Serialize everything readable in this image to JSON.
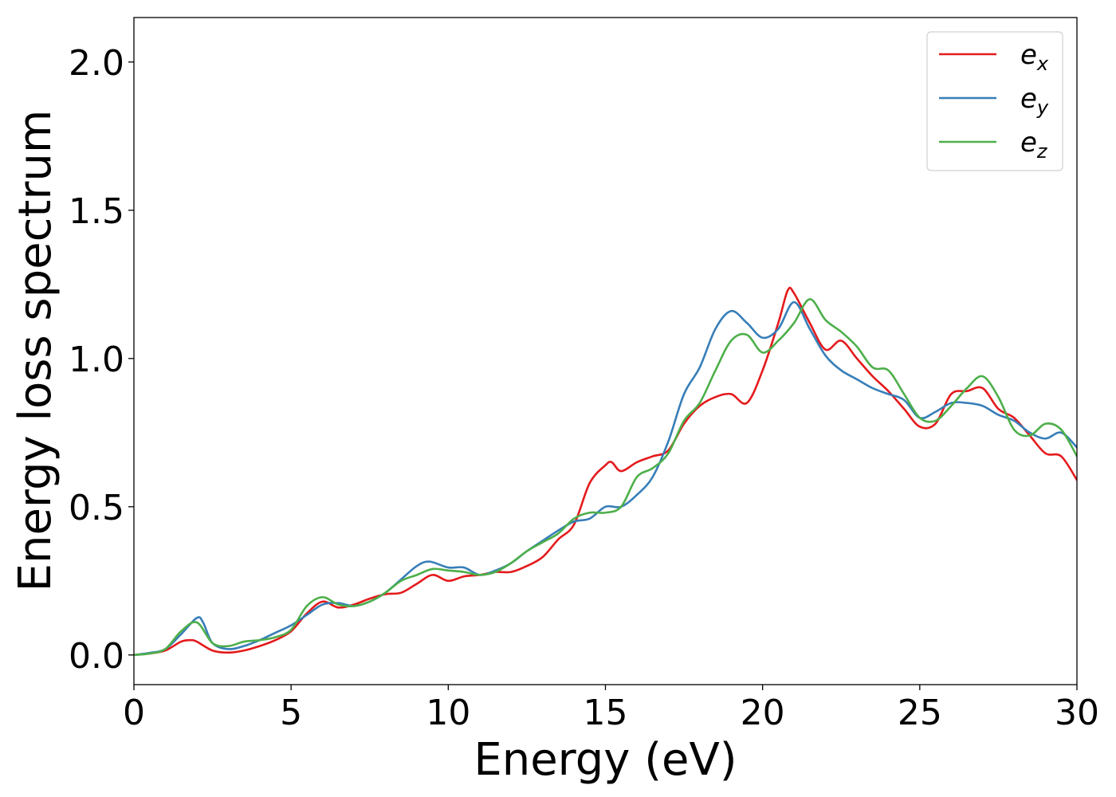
{
  "chart_data": {
    "type": "line",
    "title": "",
    "xlabel": "Energy (eV)",
    "ylabel": "Energy loss spectrum",
    "xlim": [
      0,
      30
    ],
    "ylim": [
      -0.1,
      2.15
    ],
    "x_ticks": [
      0,
      5,
      10,
      15,
      20,
      25,
      30
    ],
    "x_tick_labels": [
      "0",
      "5",
      "10",
      "15",
      "20",
      "25",
      "30"
    ],
    "y_ticks": [
      0.0,
      0.5,
      1.0,
      1.5,
      2.0
    ],
    "y_tick_labels": [
      "0.0",
      "0.5",
      "1.0",
      "1.5",
      "2.0"
    ],
    "grid": false,
    "legend_position": "top-right",
    "series": [
      {
        "name": "e_x",
        "legend_base": "e",
        "legend_sub": "x",
        "color": "#e41a1c",
        "points": [
          [
            0,
            0.0
          ],
          [
            0.5,
            0.005
          ],
          [
            1.0,
            0.015
          ],
          [
            1.5,
            0.045
          ],
          [
            1.8,
            0.05
          ],
          [
            2.0,
            0.045
          ],
          [
            2.5,
            0.015
          ],
          [
            3.0,
            0.008
          ],
          [
            3.5,
            0.015
          ],
          [
            4.0,
            0.03
          ],
          [
            4.5,
            0.05
          ],
          [
            5.0,
            0.08
          ],
          [
            5.5,
            0.14
          ],
          [
            6.0,
            0.18
          ],
          [
            6.5,
            0.16
          ],
          [
            7.0,
            0.17
          ],
          [
            7.5,
            0.19
          ],
          [
            8.0,
            0.205
          ],
          [
            8.5,
            0.21
          ],
          [
            9.0,
            0.24
          ],
          [
            9.5,
            0.27
          ],
          [
            10.0,
            0.25
          ],
          [
            10.5,
            0.265
          ],
          [
            11.0,
            0.27
          ],
          [
            11.5,
            0.28
          ],
          [
            12.0,
            0.28
          ],
          [
            12.5,
            0.3
          ],
          [
            13.0,
            0.33
          ],
          [
            13.5,
            0.39
          ],
          [
            14.0,
            0.44
          ],
          [
            14.5,
            0.58
          ],
          [
            15.0,
            0.64
          ],
          [
            15.2,
            0.65
          ],
          [
            15.5,
            0.62
          ],
          [
            16.0,
            0.65
          ],
          [
            16.5,
            0.67
          ],
          [
            17.0,
            0.69
          ],
          [
            17.5,
            0.78
          ],
          [
            18.0,
            0.84
          ],
          [
            18.5,
            0.87
          ],
          [
            19.0,
            0.88
          ],
          [
            19.5,
            0.85
          ],
          [
            20.0,
            0.96
          ],
          [
            20.5,
            1.12
          ],
          [
            20.8,
            1.23
          ],
          [
            21.0,
            1.22
          ],
          [
            21.5,
            1.12
          ],
          [
            22.0,
            1.03
          ],
          [
            22.5,
            1.06
          ],
          [
            23.0,
            1.0
          ],
          [
            23.5,
            0.94
          ],
          [
            24.0,
            0.89
          ],
          [
            24.5,
            0.83
          ],
          [
            25.0,
            0.77
          ],
          [
            25.5,
            0.78
          ],
          [
            26.0,
            0.88
          ],
          [
            26.5,
            0.89
          ],
          [
            27.0,
            0.9
          ],
          [
            27.5,
            0.83
          ],
          [
            28.0,
            0.8
          ],
          [
            28.5,
            0.74
          ],
          [
            29.0,
            0.68
          ],
          [
            29.5,
            0.67
          ],
          [
            30.0,
            0.59
          ]
        ]
      },
      {
        "name": "e_y",
        "legend_base": "e",
        "legend_sub": "y",
        "color": "#377eb8",
        "points": [
          [
            0,
            0.0
          ],
          [
            0.5,
            0.007
          ],
          [
            1.0,
            0.02
          ],
          [
            1.5,
            0.07
          ],
          [
            2.0,
            0.125
          ],
          [
            2.2,
            0.11
          ],
          [
            2.5,
            0.04
          ],
          [
            3.0,
            0.02
          ],
          [
            3.5,
            0.03
          ],
          [
            4.0,
            0.05
          ],
          [
            4.5,
            0.075
          ],
          [
            5.0,
            0.1
          ],
          [
            5.5,
            0.135
          ],
          [
            6.0,
            0.17
          ],
          [
            6.5,
            0.175
          ],
          [
            7.0,
            0.165
          ],
          [
            7.5,
            0.18
          ],
          [
            8.0,
            0.21
          ],
          [
            8.5,
            0.255
          ],
          [
            9.0,
            0.3
          ],
          [
            9.4,
            0.315
          ],
          [
            10.0,
            0.295
          ],
          [
            10.5,
            0.295
          ],
          [
            11.0,
            0.27
          ],
          [
            11.5,
            0.285
          ],
          [
            12.0,
            0.31
          ],
          [
            12.5,
            0.35
          ],
          [
            13.0,
            0.385
          ],
          [
            13.5,
            0.42
          ],
          [
            14.0,
            0.45
          ],
          [
            14.5,
            0.46
          ],
          [
            15.0,
            0.5
          ],
          [
            15.5,
            0.5
          ],
          [
            16.0,
            0.54
          ],
          [
            16.5,
            0.6
          ],
          [
            17.0,
            0.72
          ],
          [
            17.5,
            0.88
          ],
          [
            18.0,
            0.97
          ],
          [
            18.5,
            1.1
          ],
          [
            19.0,
            1.16
          ],
          [
            19.5,
            1.12
          ],
          [
            20.0,
            1.07
          ],
          [
            20.5,
            1.1
          ],
          [
            21.0,
            1.19
          ],
          [
            21.5,
            1.1
          ],
          [
            22.0,
            1.01
          ],
          [
            22.5,
            0.96
          ],
          [
            23.0,
            0.93
          ],
          [
            23.5,
            0.9
          ],
          [
            24.0,
            0.88
          ],
          [
            24.5,
            0.86
          ],
          [
            25.0,
            0.8
          ],
          [
            25.5,
            0.82
          ],
          [
            26.0,
            0.85
          ],
          [
            26.5,
            0.85
          ],
          [
            27.0,
            0.84
          ],
          [
            27.5,
            0.81
          ],
          [
            28.0,
            0.79
          ],
          [
            28.5,
            0.75
          ],
          [
            29.0,
            0.73
          ],
          [
            29.5,
            0.75
          ],
          [
            30.0,
            0.7
          ]
        ]
      },
      {
        "name": "e_z",
        "legend_base": "e",
        "legend_sub": "z",
        "color": "#4daf4a",
        "points": [
          [
            0,
            0.0
          ],
          [
            0.5,
            0.005
          ],
          [
            1.0,
            0.02
          ],
          [
            1.5,
            0.08
          ],
          [
            2.0,
            0.11
          ],
          [
            2.5,
            0.04
          ],
          [
            3.0,
            0.03
          ],
          [
            3.5,
            0.045
          ],
          [
            4.0,
            0.05
          ],
          [
            4.5,
            0.06
          ],
          [
            5.0,
            0.085
          ],
          [
            5.5,
            0.165
          ],
          [
            6.0,
            0.195
          ],
          [
            6.5,
            0.17
          ],
          [
            7.0,
            0.165
          ],
          [
            7.5,
            0.18
          ],
          [
            8.0,
            0.21
          ],
          [
            8.5,
            0.25
          ],
          [
            9.0,
            0.27
          ],
          [
            9.5,
            0.29
          ],
          [
            10.0,
            0.285
          ],
          [
            10.5,
            0.28
          ],
          [
            11.0,
            0.27
          ],
          [
            11.5,
            0.28
          ],
          [
            12.0,
            0.31
          ],
          [
            12.5,
            0.35
          ],
          [
            13.0,
            0.38
          ],
          [
            13.5,
            0.41
          ],
          [
            14.0,
            0.46
          ],
          [
            14.5,
            0.48
          ],
          [
            15.0,
            0.48
          ],
          [
            15.5,
            0.5
          ],
          [
            16.0,
            0.6
          ],
          [
            16.5,
            0.63
          ],
          [
            17.0,
            0.68
          ],
          [
            17.5,
            0.79
          ],
          [
            18.0,
            0.85
          ],
          [
            18.5,
            0.96
          ],
          [
            19.0,
            1.06
          ],
          [
            19.5,
            1.08
          ],
          [
            20.0,
            1.02
          ],
          [
            20.5,
            1.06
          ],
          [
            21.0,
            1.12
          ],
          [
            21.5,
            1.2
          ],
          [
            22.0,
            1.13
          ],
          [
            22.5,
            1.09
          ],
          [
            23.0,
            1.04
          ],
          [
            23.5,
            0.97
          ],
          [
            24.0,
            0.96
          ],
          [
            24.5,
            0.88
          ],
          [
            25.0,
            0.8
          ],
          [
            25.5,
            0.79
          ],
          [
            26.0,
            0.84
          ],
          [
            26.5,
            0.9
          ],
          [
            27.0,
            0.94
          ],
          [
            27.5,
            0.87
          ],
          [
            28.0,
            0.76
          ],
          [
            28.5,
            0.74
          ],
          [
            29.0,
            0.78
          ],
          [
            29.5,
            0.76
          ],
          [
            30.0,
            0.67
          ]
        ]
      }
    ]
  }
}
